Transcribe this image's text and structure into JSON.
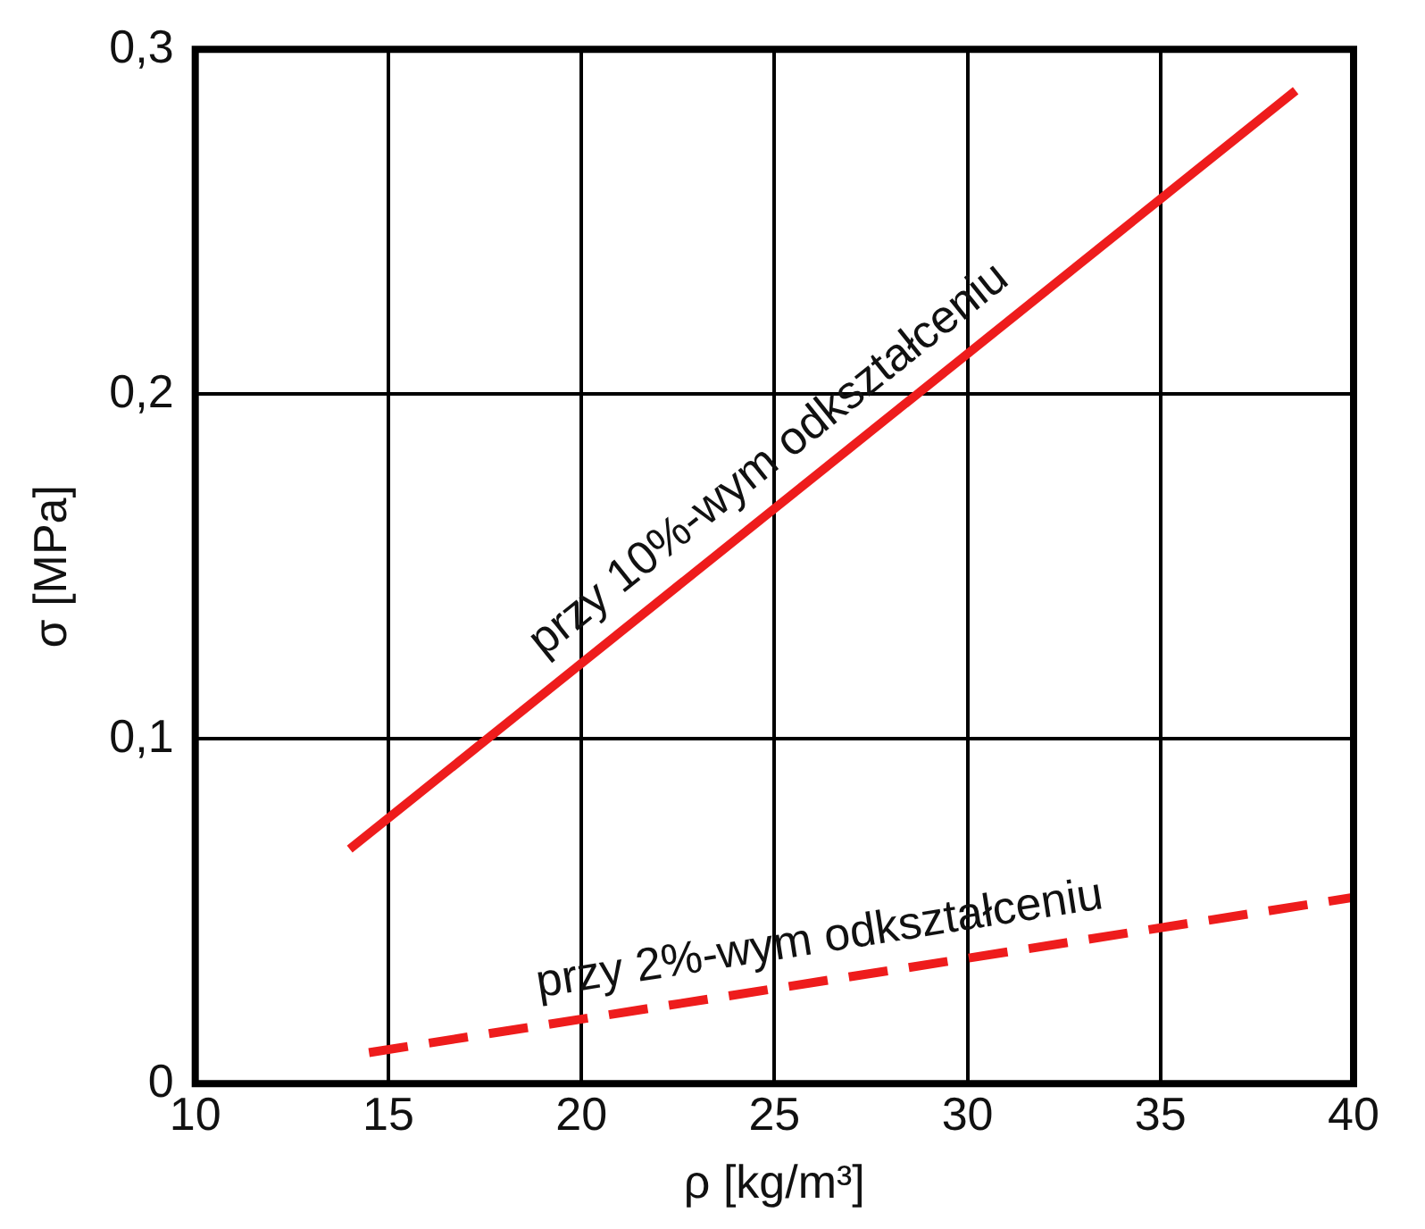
{
  "chart_data": {
    "type": "line",
    "xlabel": "ρ [kg/m³]",
    "ylabel": "σ [MPa]",
    "xlim": [
      10,
      40
    ],
    "xticks": [
      10,
      15,
      20,
      25,
      30,
      35,
      40
    ],
    "ylim": [
      0,
      0.3
    ],
    "yticks": [
      {
        "value": 0,
        "label": "0"
      },
      {
        "value": 0.1,
        "label": "0,1"
      },
      {
        "value": 0.2,
        "label": "0,2"
      },
      {
        "value": 0.3,
        "label": "0,3"
      }
    ],
    "grid": true,
    "legend": false,
    "marker": "none",
    "series": [
      {
        "name": "przy 10%-wym odkształceniu",
        "color": "#ee1c1c",
        "x": [
          14,
          38.5
        ],
        "values": [
          0.068,
          0.288
        ],
        "line_style": "solid"
      },
      {
        "name": "przy 2%-wym odkształceniu",
        "color": "#ee1c1c",
        "x": [
          14.5,
          40
        ],
        "values": [
          0.009,
          0.054
        ],
        "line_style": "dashed"
      }
    ]
  }
}
